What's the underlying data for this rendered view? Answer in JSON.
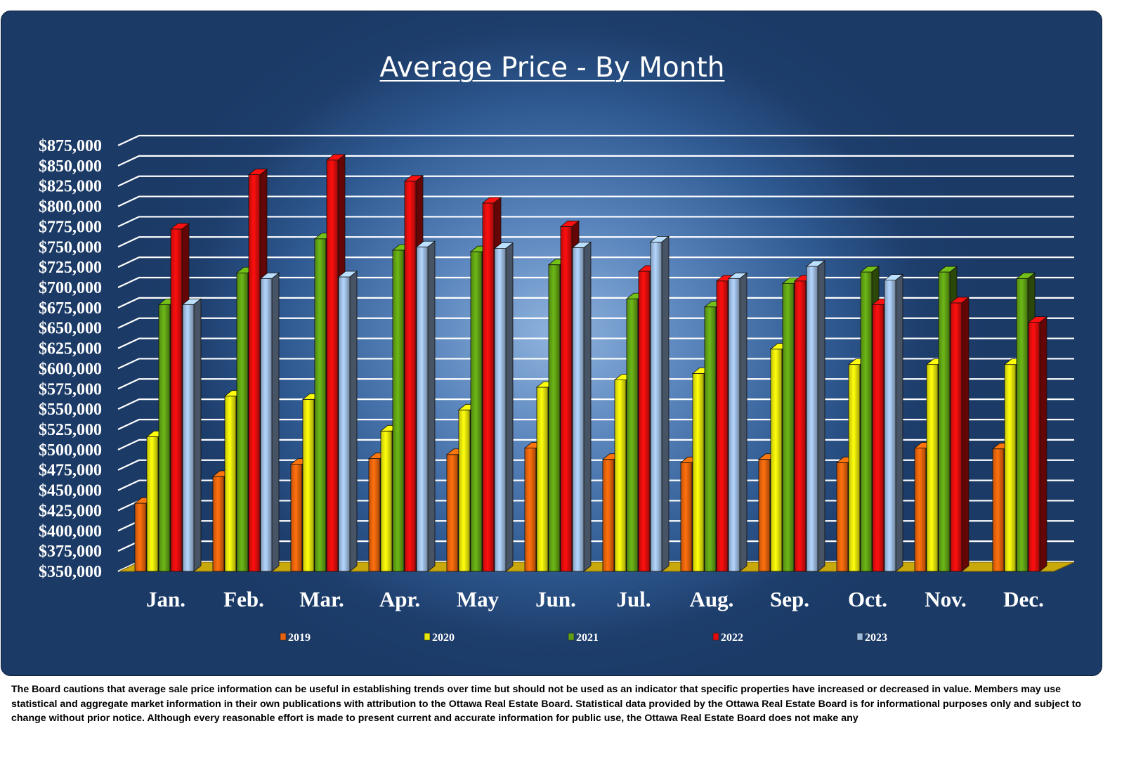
{
  "chart_data": {
    "type": "bar",
    "title": "Average Price - By Month",
    "xlabel": "",
    "ylabel": "",
    "ylim": [
      350000,
      875000
    ],
    "ytick_step": 25000,
    "categories": [
      "Jan.",
      "Feb.",
      "Mar.",
      "Apr.",
      "May",
      "Jun.",
      "Jul.",
      "Aug.",
      "Sep.",
      "Oct.",
      "Nov.",
      "Dec."
    ],
    "legend_position": "bottom",
    "grid": true,
    "series": [
      {
        "name": "2019",
        "color": "#e8620c",
        "values": [
          434000,
          467000,
          482000,
          489000,
          494000,
          502000,
          488000,
          484000,
          488000,
          484000,
          502000,
          501000
        ]
      },
      {
        "name": "2020",
        "color": "#e6e60a",
        "values": [
          516000,
          566000,
          562000,
          523000,
          549000,
          577000,
          586000,
          594000,
          624000,
          605000,
          605000,
          605000
        ]
      },
      {
        "name": "2021",
        "color": "#5fa014",
        "values": [
          679000,
          718000,
          760000,
          746000,
          744000,
          728000,
          686000,
          676000,
          705000,
          719000,
          719000,
          711000
        ]
      },
      {
        "name": "2022",
        "color": "#e00d0d",
        "values": [
          772000,
          839000,
          857000,
          831000,
          804000,
          775000,
          720000,
          708000,
          708000,
          679000,
          681000,
          657000
        ]
      },
      {
        "name": "2023",
        "color": "#9dbbe0",
        "values": [
          679000,
          711000,
          713000,
          750000,
          748000,
          749000,
          756000,
          711000,
          726000,
          709000,
          null,
          null
        ]
      }
    ]
  },
  "footer": "The Board cautions that average sale price information can be useful in establishing trends over time but should not be used  as an indicator that specific properties have increased or decreased in value.   Members may use statistical and aggregate market information in their own publications with attribution to the Ottawa Real Estate Board. Statistical data provided by the Ottawa Real Estate Board is for informational purposes only and subject to change without prior notice. Although every reasonable effort is made to present current and accurate information for public use, the Ottawa Real Estate Board does not make any"
}
